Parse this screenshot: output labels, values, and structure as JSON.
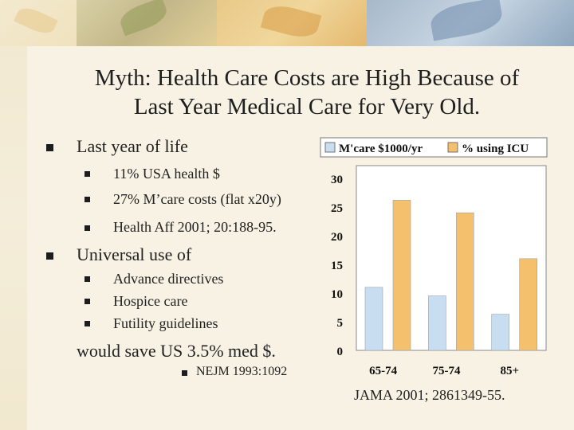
{
  "title": {
    "line1": "Myth: Health Care Costs are High Because of",
    "line2": "Last Year Medical Care for Very Old."
  },
  "bullets": {
    "b1": {
      "text": "Last year of life",
      "subs": [
        "11% USA health $",
        "27% M’care costs (flat x20y)",
        "Health Aff 2001; 20:188-95."
      ]
    },
    "b2": {
      "text": "Universal use of",
      "subs": [
        "Advance directives",
        "Hospice care",
        "Futility guidelines"
      ]
    }
  },
  "conclusion": "would save US 3.5% med $.",
  "nejm_ref": "NEJM 1993:1092",
  "jama_ref": "JAMA 2001; 2861349-55.",
  "colors": {
    "series1": "#c9ddf0",
    "series2": "#f5c06e"
  },
  "chart_data": {
    "type": "bar",
    "categories": [
      "65-74",
      "75-74",
      "85+"
    ],
    "series": [
      {
        "name": "M'care $1000/yr",
        "values": [
          11,
          9.5,
          6.3
        ]
      },
      {
        "name": "% using ICU",
        "values": [
          26.2,
          24,
          16
        ]
      }
    ],
    "ylim": [
      0,
      30
    ],
    "yticks": [
      "0",
      "5",
      "10",
      "15",
      "20",
      "25",
      "30"
    ],
    "legend": "top",
    "grid": false
  }
}
